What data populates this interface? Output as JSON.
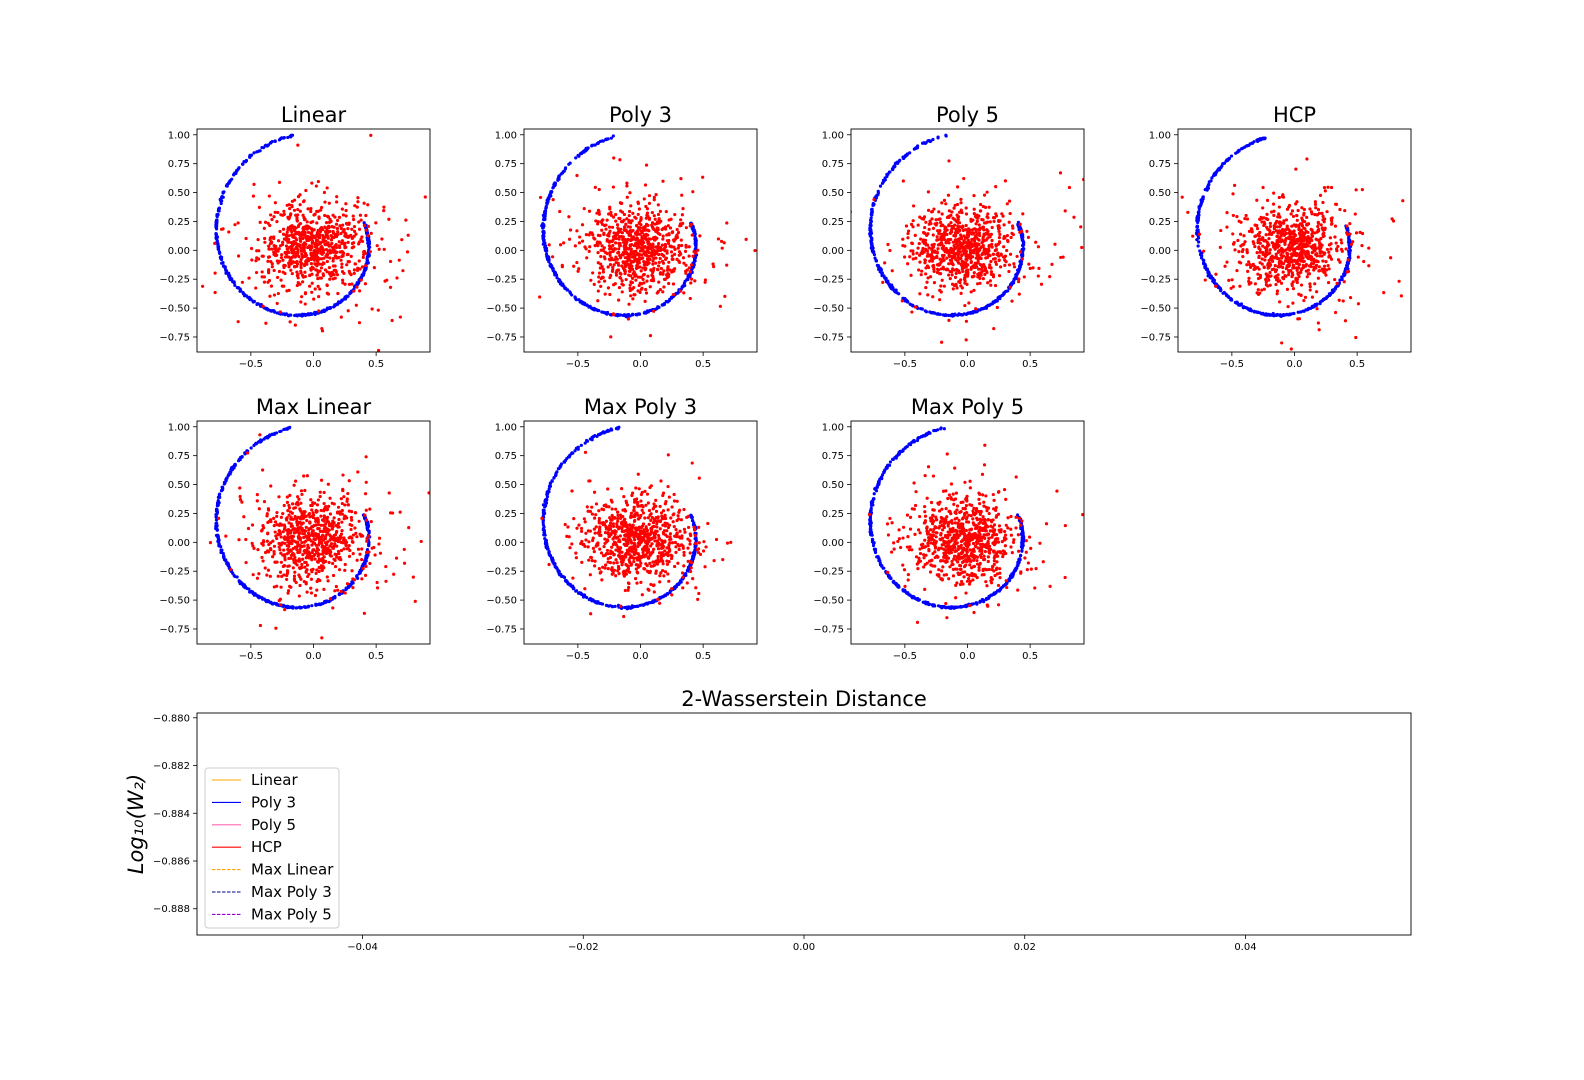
{
  "chart_data": [
    {
      "type": "scatter",
      "title": "Linear",
      "xlim": [
        -0.93,
        0.93
      ],
      "ylim": [
        -0.88,
        1.05
      ],
      "xticks": [
        -0.5,
        0.0,
        0.5
      ],
      "yticks": [
        1.0,
        0.75,
        0.5,
        0.25,
        0.0,
        -0.25,
        -0.5,
        -0.75
      ],
      "xtick_labels": [
        "−0.5",
        "0.0",
        "0.5"
      ],
      "ytick_labels": [
        "1.00",
        "0.75",
        "0.50",
        "0.25",
        "0.00",
        "−0.25",
        "−0.50",
        "−0.75"
      ],
      "series": [
        {
          "kind": "target spiral",
          "color": "#0000ff",
          "count": 420
        },
        {
          "kind": "generated samples",
          "color": "#ff0000",
          "count": 800
        }
      ]
    },
    {
      "type": "scatter",
      "title": "Poly 3",
      "xlim": [
        -0.93,
        0.93
      ],
      "ylim": [
        -0.88,
        1.05
      ],
      "xticks": [
        -0.5,
        0.0,
        0.5
      ],
      "yticks": [
        1.0,
        0.75,
        0.5,
        0.25,
        0.0,
        -0.25,
        -0.5,
        -0.75
      ],
      "xtick_labels": [
        "−0.5",
        "0.0",
        "0.5"
      ],
      "ytick_labels": [
        "1.00",
        "0.75",
        "0.50",
        "0.25",
        "0.00",
        "−0.25",
        "−0.50",
        "−0.75"
      ],
      "series": [
        {
          "kind": "target spiral",
          "color": "#0000ff",
          "count": 420
        },
        {
          "kind": "generated samples",
          "color": "#ff0000",
          "count": 800
        }
      ]
    },
    {
      "type": "scatter",
      "title": "Poly 5",
      "xlim": [
        -0.93,
        0.93
      ],
      "ylim": [
        -0.88,
        1.05
      ],
      "xticks": [
        -0.5,
        0.0,
        0.5
      ],
      "yticks": [
        1.0,
        0.75,
        0.5,
        0.25,
        0.0,
        -0.25,
        -0.5,
        -0.75
      ],
      "xtick_labels": [
        "−0.5",
        "0.0",
        "0.5"
      ],
      "ytick_labels": [
        "1.00",
        "0.75",
        "0.50",
        "0.25",
        "0.00",
        "−0.25",
        "−0.50",
        "−0.75"
      ],
      "series": [
        {
          "kind": "target spiral",
          "color": "#0000ff",
          "count": 420
        },
        {
          "kind": "generated samples",
          "color": "#ff0000",
          "count": 800
        }
      ]
    },
    {
      "type": "scatter",
      "title": "HCP",
      "xlim": [
        -0.93,
        0.93
      ],
      "ylim": [
        -0.88,
        1.05
      ],
      "xticks": [
        -0.5,
        0.0,
        0.5
      ],
      "yticks": [
        1.0,
        0.75,
        0.5,
        0.25,
        0.0,
        -0.25,
        -0.5,
        -0.75
      ],
      "xtick_labels": [
        "−0.5",
        "0.0",
        "0.5"
      ],
      "ytick_labels": [
        "1.00",
        "0.75",
        "0.50",
        "0.25",
        "0.00",
        "−0.25",
        "−0.50",
        "−0.75"
      ],
      "series": [
        {
          "kind": "target spiral",
          "color": "#0000ff",
          "count": 420
        },
        {
          "kind": "generated samples",
          "color": "#ff0000",
          "count": 800
        }
      ]
    },
    {
      "type": "scatter",
      "title": "Max Linear",
      "xlim": [
        -0.93,
        0.93
      ],
      "ylim": [
        -0.88,
        1.05
      ],
      "xticks": [
        -0.5,
        0.0,
        0.5
      ],
      "yticks": [
        1.0,
        0.75,
        0.5,
        0.25,
        0.0,
        -0.25,
        -0.5,
        -0.75
      ],
      "xtick_labels": [
        "−0.5",
        "0.0",
        "0.5"
      ],
      "ytick_labels": [
        "1.00",
        "0.75",
        "0.50",
        "0.25",
        "0.00",
        "−0.25",
        "−0.50",
        "−0.75"
      ],
      "series": [
        {
          "kind": "target spiral",
          "color": "#0000ff",
          "count": 420
        },
        {
          "kind": "generated samples",
          "color": "#ff0000",
          "count": 800
        }
      ]
    },
    {
      "type": "scatter",
      "title": "Max Poly 3",
      "xlim": [
        -0.93,
        0.93
      ],
      "ylim": [
        -0.88,
        1.05
      ],
      "xticks": [
        -0.5,
        0.0,
        0.5
      ],
      "yticks": [
        1.0,
        0.75,
        0.5,
        0.25,
        0.0,
        -0.25,
        -0.5,
        -0.75
      ],
      "xtick_labels": [
        "−0.5",
        "0.0",
        "0.5"
      ],
      "ytick_labels": [
        "1.00",
        "0.75",
        "0.50",
        "0.25",
        "0.00",
        "−0.25",
        "−0.50",
        "−0.75"
      ],
      "series": [
        {
          "kind": "target spiral",
          "color": "#0000ff",
          "count": 420
        },
        {
          "kind": "generated samples",
          "color": "#ff0000",
          "count": 800
        }
      ]
    },
    {
      "type": "scatter",
      "title": "Max Poly 5",
      "xlim": [
        -0.93,
        0.93
      ],
      "ylim": [
        -0.88,
        1.05
      ],
      "xticks": [
        -0.5,
        0.0,
        0.5
      ],
      "yticks": [
        1.0,
        0.75,
        0.5,
        0.25,
        0.0,
        -0.25,
        -0.5,
        -0.75
      ],
      "xtick_labels": [
        "−0.5",
        "0.0",
        "0.5"
      ],
      "ytick_labels": [
        "1.00",
        "0.75",
        "0.50",
        "0.25",
        "0.00",
        "−0.25",
        "−0.50",
        "−0.75"
      ],
      "series": [
        {
          "kind": "target spiral",
          "color": "#0000ff",
          "count": 420
        },
        {
          "kind": "generated samples",
          "color": "#ff0000",
          "count": 800
        }
      ]
    },
    {
      "type": "line",
      "title": "2-Wasserstein Distance",
      "ylabel": "Log₁₀(W₂)",
      "xlabel": "",
      "xlim": [
        -0.055,
        0.055
      ],
      "ylim": [
        -0.8891,
        -0.8798
      ],
      "xticks": [
        -0.04,
        -0.02,
        0.0,
        0.02,
        0.04
      ],
      "yticks": [
        -0.88,
        -0.882,
        -0.884,
        -0.886,
        -0.888
      ],
      "xtick_labels": [
        "−0.04",
        "−0.02",
        "0.00",
        "0.02",
        "0.04"
      ],
      "ytick_labels": [
        "−0.880",
        "−0.882",
        "−0.884",
        "−0.886",
        "−0.888"
      ],
      "legend_position": "lower-left",
      "series": [
        {
          "name": "Linear",
          "color": "#ffa500",
          "dash": "solid",
          "x": [],
          "y": []
        },
        {
          "name": "Poly 3",
          "color": "#0000ff",
          "dash": "solid",
          "x": [],
          "y": []
        },
        {
          "name": "Poly 5",
          "color": "#ff69b4",
          "dash": "solid",
          "x": [],
          "y": []
        },
        {
          "name": "HCP",
          "color": "#ff0000",
          "dash": "solid",
          "x": [],
          "y": []
        },
        {
          "name": "Max Linear",
          "color": "#ffa500",
          "dash": "dashed",
          "x": [],
          "y": []
        },
        {
          "name": "Max Poly 3",
          "color": "#000080",
          "dash": "dashed",
          "x": [],
          "y": []
        },
        {
          "name": "Max Poly 5",
          "color": "#9400d3",
          "dash": "dashed",
          "x": [],
          "y": []
        }
      ]
    }
  ]
}
